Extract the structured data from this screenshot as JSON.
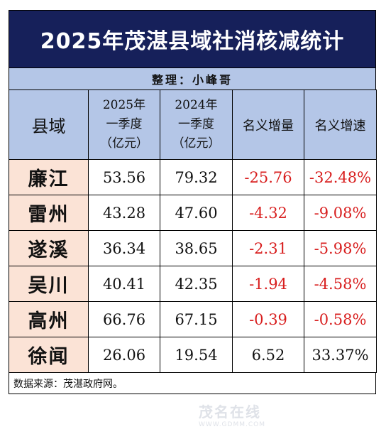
{
  "title": "2025年茂湛县域社消核减统计",
  "subtitle": "整理：小峰哥",
  "headers": {
    "county": "县域",
    "y2025": [
      "2025年",
      "一季度",
      "（亿元）"
    ],
    "y2024": [
      "2024年",
      "一季度",
      "（亿元）"
    ],
    "increase": "名义增量",
    "growth": "名义增速"
  },
  "rows": [
    {
      "county": "廉江",
      "v2025": "53.56",
      "v2024": "79.32",
      "increase": "-25.76",
      "growth": "-32.48%"
    },
    {
      "county": "雷州",
      "v2025": "43.28",
      "v2024": "47.60",
      "increase": "-4.32",
      "growth": "-9.08%"
    },
    {
      "county": "遂溪",
      "v2025": "36.34",
      "v2024": "38.65",
      "increase": "-2.31",
      "growth": "-5.98%"
    },
    {
      "county": "吴川",
      "v2025": "40.41",
      "v2024": "42.35",
      "increase": "-1.94",
      "growth": "-4.58%"
    },
    {
      "county": "高州",
      "v2025": "66.76",
      "v2024": "67.15",
      "increase": "-0.39",
      "growth": "-0.58%"
    },
    {
      "county": "徐闻",
      "v2025": "26.06",
      "v2024": "19.54",
      "increase": "6.52",
      "growth": "33.37%"
    }
  ],
  "source": "数据来源：茂湛政府网。",
  "watermark": {
    "brand": "茂名在线",
    "url": "WWW.GDMM.COM"
  },
  "colors": {
    "title_bg": "#16205a",
    "header_bg": "#b4c6e7",
    "county_bg": "#fbe3d6",
    "negative": "#d81e1e"
  }
}
